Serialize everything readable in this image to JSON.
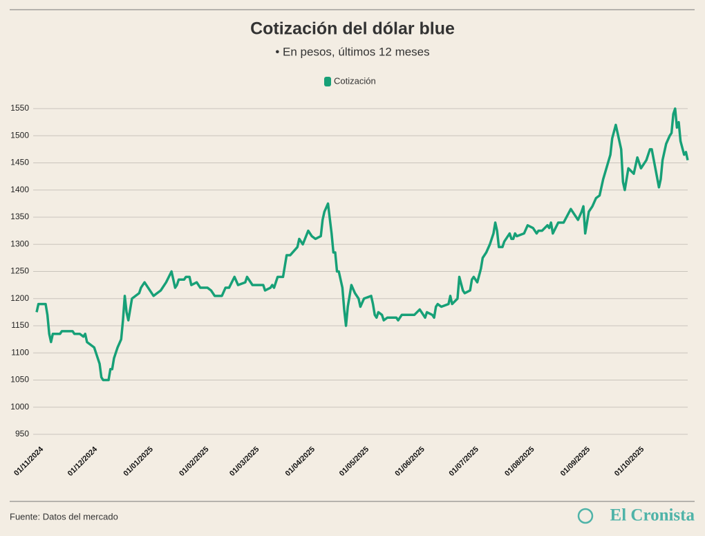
{
  "chart_data": {
    "type": "line",
    "title": "Cotización del dólar blue",
    "subtitle": "• En pesos, últimos 12 meses",
    "source": "Fuente: Datos del mercado",
    "brand": "El Cronista",
    "grid": true,
    "legend": "top",
    "x": [
      "01/11/2024",
      "02/11/2024",
      "06/11/2024",
      "07/11/2024",
      "08/11/2024",
      "09/11/2024",
      "10/11/2024",
      "14/11/2024",
      "15/11/2024",
      "21/11/2024",
      "22/11/2024",
      "25/11/2024",
      "27/11/2024",
      "28/11/2024",
      "29/11/2024",
      "03/12/2024",
      "04/12/2024",
      "06/12/2024",
      "07/12/2024",
      "08/12/2024",
      "11/12/2024",
      "12/12/2024",
      "13/12/2024",
      "14/12/2024",
      "16/12/2024",
      "18/12/2024",
      "19/12/2024",
      "20/12/2024",
      "21/12/2024",
      "22/12/2024",
      "23/12/2024",
      "24/12/2024",
      "28/12/2024",
      "29/12/2024",
      "31/12/2024",
      "02/01/2025",
      "05/01/2025",
      "07/01/2025",
      "09/01/2025",
      "12/01/2025",
      "15/01/2025",
      "16/01/2025",
      "17/01/2025",
      "18/01/2025",
      "19/01/2025",
      "22/01/2025",
      "23/01/2025",
      "25/01/2025",
      "26/01/2025",
      "29/01/2025",
      "31/01/2025",
      "04/02/2025",
      "06/02/2025",
      "08/02/2025",
      "12/02/2025",
      "14/02/2025",
      "16/02/2025",
      "19/02/2025",
      "21/02/2025",
      "25/02/2025",
      "26/02/2025",
      "01/03/2025",
      "07/03/2025",
      "08/03/2025",
      "11/03/2025",
      "12/03/2025",
      "13/03/2025",
      "15/03/2025",
      "18/03/2025",
      "20/03/2025",
      "22/03/2025",
      "26/03/2025",
      "27/03/2025",
      "29/03/2025",
      "01/04/2025",
      "03/04/2025",
      "05/04/2025",
      "08/04/2025",
      "09/04/2025",
      "10/04/2025",
      "12/04/2025",
      "14/04/2025",
      "15/04/2025",
      "16/04/2025",
      "17/04/2025",
      "18/04/2025",
      "20/04/2025",
      "21/04/2025",
      "22/04/2025",
      "23/04/2025",
      "25/04/2025",
      "27/04/2025",
      "29/04/2025",
      "30/04/2025",
      "02/05/2025",
      "06/05/2025",
      "07/05/2025",
      "08/05/2025",
      "09/05/2025",
      "10/05/2025",
      "12/05/2025",
      "13/05/2025",
      "15/05/2025",
      "20/05/2025",
      "21/05/2025",
      "23/05/2025",
      "30/05/2025",
      "02/06/2025",
      "05/06/2025",
      "06/06/2025",
      "09/06/2025",
      "10/06/2025",
      "11/06/2025",
      "12/06/2025",
      "14/06/2025",
      "18/06/2025",
      "19/06/2025",
      "20/06/2025",
      "23/06/2025",
      "24/06/2025",
      "26/06/2025",
      "27/06/2025",
      "30/06/2025",
      "01/07/2025",
      "02/07/2025",
      "04/07/2025",
      "06/07/2025",
      "07/07/2025",
      "09/07/2025",
      "11/07/2025",
      "13/07/2025",
      "14/07/2025",
      "15/07/2025",
      "16/07/2025",
      "18/07/2025",
      "19/07/2025",
      "22/07/2025",
      "23/07/2025",
      "24/07/2025",
      "25/07/2025",
      "26/07/2025",
      "30/07/2025",
      "01/08/2025",
      "04/08/2025",
      "06/08/2025",
      "07/08/2025",
      "09/08/2025",
      "12/08/2025",
      "13/08/2025",
      "14/08/2025",
      "15/08/2025",
      "18/08/2025",
      "21/08/2025",
      "25/08/2025",
      "29/08/2025",
      "31/08/2025",
      "01/09/2025",
      "02/09/2025",
      "04/09/2025",
      "06/09/2025",
      "08/09/2025",
      "10/09/2025",
      "12/09/2025",
      "16/09/2025",
      "17/09/2025",
      "19/09/2025",
      "22/09/2025",
      "23/09/2025",
      "24/09/2025",
      "26/09/2025",
      "29/09/2025",
      "01/10/2025",
      "03/10/2025",
      "06/10/2025",
      "08/10/2025",
      "09/10/2025",
      "11/10/2025",
      "13/10/2025",
      "14/10/2025",
      "15/10/2025",
      "17/10/2025",
      "19/10/2025",
      "20/10/2025",
      "21/10/2025",
      "22/10/2025",
      "23/10/2025",
      "24/10/2025",
      "25/10/2025",
      "27/10/2025",
      "28/10/2025",
      "29/10/2025"
    ],
    "series": [
      {
        "name": "Cotización",
        "color": "#17a077",
        "values": [
          1175,
          1190,
          1190,
          1170,
          1135,
          1120,
          1135,
          1135,
          1140,
          1140,
          1135,
          1135,
          1130,
          1135,
          1120,
          1110,
          1100,
          1080,
          1055,
          1050,
          1050,
          1070,
          1070,
          1090,
          1110,
          1125,
          1160,
          1205,
          1175,
          1160,
          1180,
          1200,
          1210,
          1220,
          1230,
          1220,
          1205,
          1210,
          1215,
          1230,
          1250,
          1235,
          1220,
          1225,
          1235,
          1235,
          1240,
          1240,
          1225,
          1230,
          1220,
          1220,
          1215,
          1205,
          1205,
          1220,
          1220,
          1240,
          1225,
          1230,
          1240,
          1225,
          1225,
          1215,
          1220,
          1225,
          1220,
          1240,
          1240,
          1280,
          1280,
          1295,
          1310,
          1300,
          1325,
          1315,
          1310,
          1315,
          1345,
          1360,
          1375,
          1320,
          1285,
          1285,
          1250,
          1250,
          1220,
          1180,
          1150,
          1185,
          1225,
          1210,
          1200,
          1185,
          1200,
          1205,
          1190,
          1170,
          1165,
          1175,
          1170,
          1160,
          1165,
          1165,
          1160,
          1170,
          1170,
          1180,
          1165,
          1175,
          1170,
          1165,
          1185,
          1190,
          1185,
          1190,
          1205,
          1190,
          1200,
          1240,
          1215,
          1210,
          1215,
          1235,
          1240,
          1230,
          1255,
          1275,
          1285,
          1300,
          1320,
          1340,
          1325,
          1295,
          1295,
          1305,
          1320,
          1310,
          1310,
          1320,
          1315,
          1320,
          1335,
          1330,
          1320,
          1325,
          1325,
          1335,
          1330,
          1340,
          1320,
          1340,
          1340,
          1365,
          1345,
          1360,
          1370,
          1320,
          1360,
          1370,
          1385,
          1390,
          1420,
          1465,
          1495,
          1520,
          1475,
          1415,
          1400,
          1440,
          1430,
          1460,
          1440,
          1455,
          1475,
          1475,
          1440,
          1405,
          1420,
          1455,
          1485,
          1500,
          1505,
          1540,
          1550,
          1515,
          1525,
          1490,
          1465,
          1470,
          1455
        ]
      }
    ],
    "xlim": [
      "01/11/2024",
      "29/10/2025"
    ],
    "xticks": [
      "01/11/2024",
      "01/12/2024",
      "01/01/2025",
      "01/02/2025",
      "01/03/2025",
      "01/04/2025",
      "01/05/2025",
      "01/06/2025",
      "01/07/2025",
      "01/08/2025",
      "01/09/2025",
      "01/10/2025"
    ],
    "ylim": [
      950,
      1550
    ],
    "yticks": [
      950,
      1000,
      1050,
      1100,
      1150,
      1200,
      1250,
      1300,
      1350,
      1400,
      1450,
      1500,
      1550
    ]
  }
}
